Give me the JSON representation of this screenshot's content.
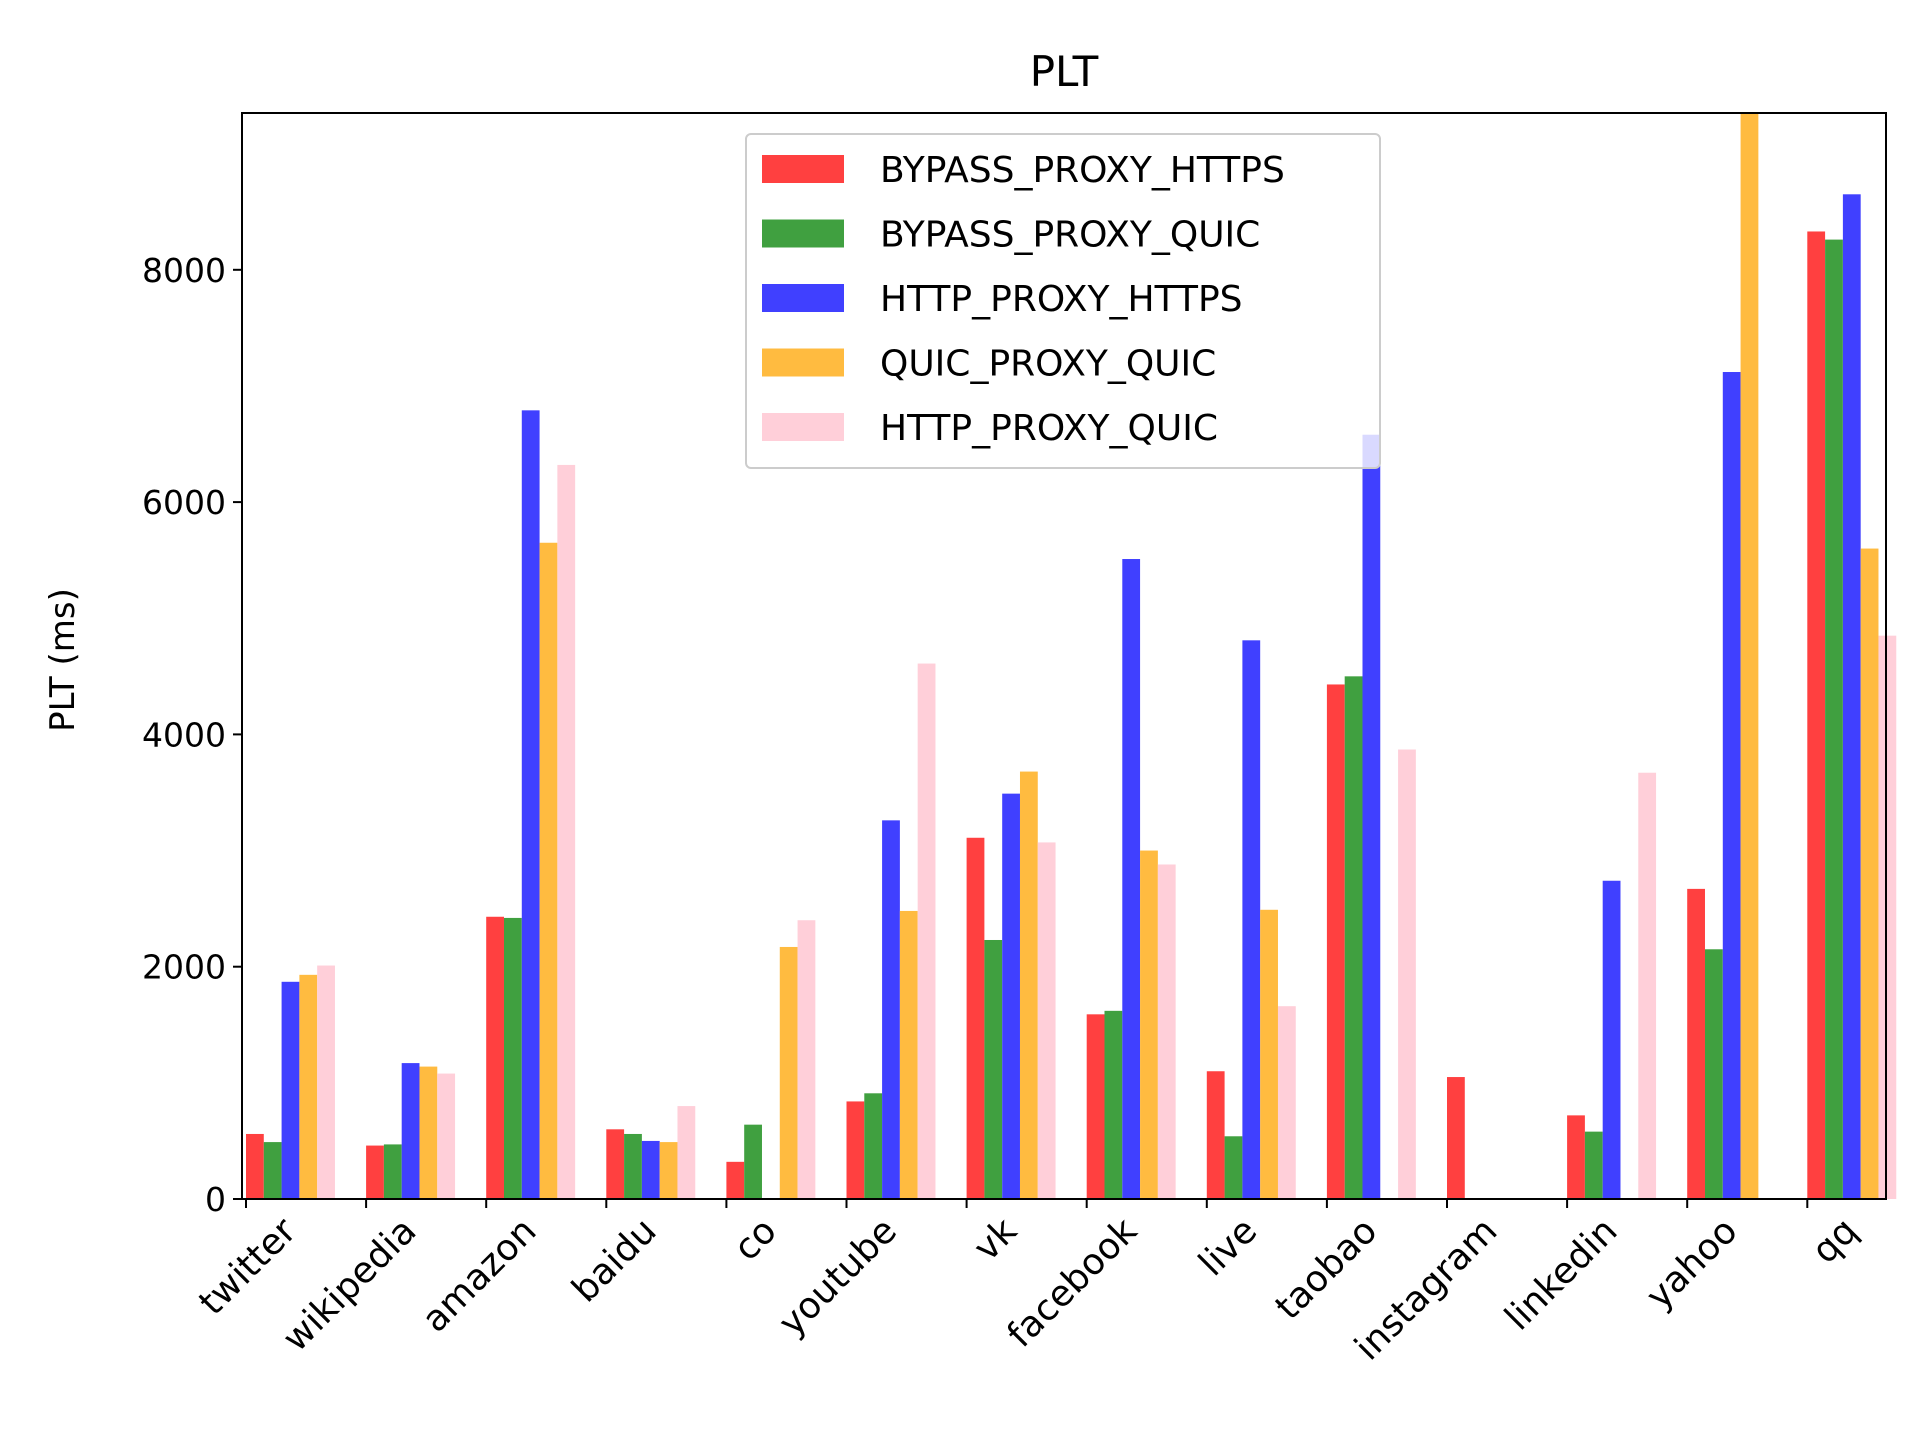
{
  "chart_data": {
    "type": "bar",
    "title": "PLT",
    "xlabel": "",
    "ylabel": "PLT (ms)",
    "ylim": [
      0,
      9350
    ],
    "yticks": [
      0,
      2000,
      4000,
      6000,
      8000
    ],
    "grid": false,
    "legend_position": "top-center",
    "categories": [
      "twitter",
      "wikipedia",
      "amazon",
      "baidu",
      "co",
      "youtube",
      "vk",
      "facebook",
      "live",
      "taobao",
      "instagram",
      "linkedin",
      "yahoo",
      "qq"
    ],
    "series": [
      {
        "name": "BYPASS_PROXY_HTTPS",
        "color": "#ff4040",
        "values": [
          560,
          460,
          2430,
          600,
          320,
          840,
          3110,
          1590,
          1100,
          4430,
          1050,
          720,
          2670,
          8330
        ]
      },
      {
        "name": "BYPASS_PROXY_QUIC",
        "color": "#40a040",
        "values": [
          490,
          470,
          2420,
          560,
          640,
          910,
          2230,
          1620,
          540,
          4500,
          0,
          580,
          2150,
          8260
        ]
      },
      {
        "name": "HTTP_PROXY_HTTPS",
        "color": "#4040ff",
        "values": [
          1870,
          1170,
          6790,
          500,
          0,
          3260,
          3490,
          5510,
          4810,
          6580,
          0,
          2740,
          7120,
          8650
        ]
      },
      {
        "name": "QUIC_PROXY_QUIC",
        "color": "#ffbb40",
        "values": [
          1930,
          1140,
          5650,
          490,
          2170,
          2480,
          3680,
          3000,
          2490,
          0,
          0,
          0,
          9350,
          5600
        ]
      },
      {
        "name": "HTTP_PROXY_QUIC",
        "color": "#ffcfd9",
        "values": [
          2010,
          1080,
          6320,
          800,
          2400,
          4610,
          3070,
          2880,
          1660,
          3870,
          0,
          3670,
          0,
          4850
        ]
      }
    ]
  }
}
